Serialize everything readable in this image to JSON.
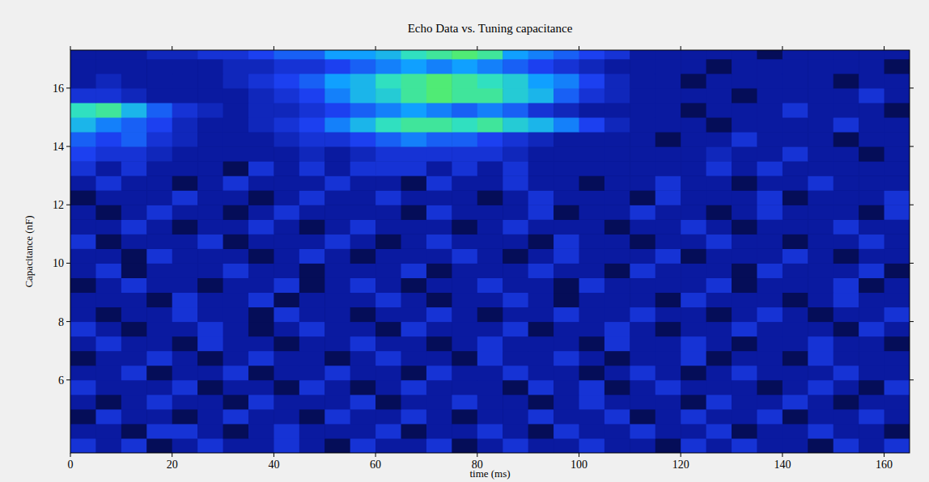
{
  "chart_data": {
    "type": "heatmap",
    "title": "Echo Data vs. Tuning capacitance",
    "x_label": "time (ms)",
    "y_label": "Capacitance (nF)",
    "xlim": [
      0,
      165
    ],
    "ylim": [
      3.5,
      17.3
    ],
    "xticks": [
      0,
      20,
      40,
      60,
      80,
      100,
      120,
      140,
      160
    ],
    "yticks": [
      6,
      8,
      10,
      12,
      14,
      16
    ],
    "zlim": [
      0,
      1
    ],
    "x_bins": [
      0,
      5,
      10,
      15,
      20,
      25,
      30,
      35,
      40,
      45,
      50,
      55,
      60,
      65,
      70,
      75,
      80,
      85,
      90,
      95,
      100,
      105,
      110,
      115,
      120,
      125,
      130,
      135,
      140,
      145,
      150,
      155,
      160,
      165
    ],
    "y_bins": [
      3.5,
      4.0,
      4.5,
      5.0,
      5.5,
      6.0,
      6.5,
      7.0,
      7.5,
      8.0,
      8.5,
      9.0,
      9.5,
      10.0,
      10.5,
      11.0,
      11.5,
      12.0,
      12.5,
      13.0,
      13.5,
      14.0,
      14.5,
      15.0,
      15.5,
      16.0,
      16.5,
      17.0,
      17.5
    ],
    "z": [
      [
        0.3,
        0.2,
        0.3,
        0.1,
        0.2,
        0.3,
        0.2,
        0.2,
        0.3,
        0.2,
        0.1,
        0.3,
        0.2,
        0.2,
        0.3,
        0.1,
        0.2,
        0.3,
        0.2,
        0.2,
        0.3,
        0.2,
        0.2,
        0.1,
        0.3,
        0.2,
        0.3,
        0.2,
        0.2,
        0.1,
        0.3,
        0.2,
        0.3
      ],
      [
        0.2,
        0.2,
        0.1,
        0.3,
        0.3,
        0.2,
        0.1,
        0.2,
        0.3,
        0.2,
        0.2,
        0.2,
        0.3,
        0.1,
        0.2,
        0.2,
        0.3,
        0.2,
        0.1,
        0.3,
        0.2,
        0.2,
        0.3,
        0.2,
        0.2,
        0.3,
        0.1,
        0.2,
        0.2,
        0.3,
        0.2,
        0.2,
        0.1
      ],
      [
        0.1,
        0.3,
        0.2,
        0.2,
        0.1,
        0.2,
        0.3,
        0.2,
        0.2,
        0.1,
        0.3,
        0.2,
        0.2,
        0.3,
        0.2,
        0.1,
        0.2,
        0.2,
        0.3,
        0.2,
        0.2,
        0.3,
        0.1,
        0.2,
        0.3,
        0.2,
        0.2,
        0.3,
        0.1,
        0.2,
        0.2,
        0.3,
        0.2
      ],
      [
        0.2,
        0.1,
        0.2,
        0.3,
        0.2,
        0.2,
        0.1,
        0.3,
        0.2,
        0.2,
        0.2,
        0.3,
        0.1,
        0.2,
        0.2,
        0.3,
        0.2,
        0.2,
        0.1,
        0.2,
        0.3,
        0.2,
        0.2,
        0.2,
        0.1,
        0.3,
        0.2,
        0.2,
        0.3,
        0.2,
        0.1,
        0.2,
        0.2
      ],
      [
        0.3,
        0.2,
        0.2,
        0.2,
        0.3,
        0.1,
        0.2,
        0.2,
        0.1,
        0.3,
        0.2,
        0.1,
        0.2,
        0.3,
        0.2,
        0.2,
        0.2,
        0.1,
        0.3,
        0.2,
        0.3,
        0.1,
        0.2,
        0.3,
        0.2,
        0.2,
        0.2,
        0.1,
        0.2,
        0.3,
        0.2,
        0.1,
        0.3
      ],
      [
        0.2,
        0.2,
        0.3,
        0.1,
        0.2,
        0.2,
        0.3,
        0.1,
        0.2,
        0.2,
        0.3,
        0.2,
        0.2,
        0.1,
        0.3,
        0.2,
        0.2,
        0.3,
        0.2,
        0.2,
        0.1,
        0.2,
        0.3,
        0.2,
        0.1,
        0.2,
        0.3,
        0.2,
        0.2,
        0.2,
        0.3,
        0.2,
        0.2
      ],
      [
        0.1,
        0.2,
        0.2,
        0.3,
        0.2,
        0.1,
        0.2,
        0.3,
        0.2,
        0.2,
        0.1,
        0.2,
        0.3,
        0.2,
        0.2,
        0.1,
        0.3,
        0.2,
        0.2,
        0.3,
        0.2,
        0.1,
        0.2,
        0.2,
        0.3,
        0.1,
        0.2,
        0.2,
        0.1,
        0.3,
        0.2,
        0.2,
        0.2
      ],
      [
        0.2,
        0.3,
        0.2,
        0.2,
        0.1,
        0.3,
        0.2,
        0.2,
        0.1,
        0.2,
        0.2,
        0.3,
        0.2,
        0.2,
        0.1,
        0.2,
        0.3,
        0.2,
        0.2,
        0.2,
        0.1,
        0.3,
        0.2,
        0.2,
        0.3,
        0.2,
        0.1,
        0.2,
        0.2,
        0.3,
        0.2,
        0.2,
        0.1
      ],
      [
        0.3,
        0.2,
        0.1,
        0.2,
        0.2,
        0.3,
        0.2,
        0.1,
        0.2,
        0.3,
        0.2,
        0.2,
        0.1,
        0.3,
        0.2,
        0.2,
        0.2,
        0.3,
        0.1,
        0.2,
        0.2,
        0.3,
        0.2,
        0.1,
        0.2,
        0.2,
        0.3,
        0.2,
        0.2,
        0.2,
        0.1,
        0.3,
        0.2
      ],
      [
        0.2,
        0.1,
        0.2,
        0.2,
        0.3,
        0.2,
        0.2,
        0.1,
        0.3,
        0.2,
        0.2,
        0.1,
        0.2,
        0.2,
        0.3,
        0.2,
        0.1,
        0.2,
        0.2,
        0.3,
        0.2,
        0.2,
        0.3,
        0.2,
        0.2,
        0.1,
        0.2,
        0.3,
        0.2,
        0.1,
        0.2,
        0.2,
        0.3
      ],
      [
        0.2,
        0.2,
        0.2,
        0.1,
        0.3,
        0.2,
        0.2,
        0.3,
        0.1,
        0.2,
        0.2,
        0.2,
        0.3,
        0.2,
        0.1,
        0.2,
        0.2,
        0.3,
        0.2,
        0.1,
        0.2,
        0.2,
        0.2,
        0.1,
        0.3,
        0.2,
        0.2,
        0.2,
        0.1,
        0.2,
        0.3,
        0.2,
        0.2
      ],
      [
        0.1,
        0.2,
        0.3,
        0.2,
        0.2,
        0.1,
        0.2,
        0.2,
        0.3,
        0.1,
        0.2,
        0.3,
        0.2,
        0.1,
        0.2,
        0.2,
        0.3,
        0.2,
        0.2,
        0.1,
        0.3,
        0.2,
        0.2,
        0.2,
        0.2,
        0.3,
        0.1,
        0.2,
        0.2,
        0.2,
        0.3,
        0.1,
        0.2
      ],
      [
        0.2,
        0.3,
        0.1,
        0.2,
        0.2,
        0.2,
        0.3,
        0.2,
        0.2,
        0.1,
        0.2,
        0.2,
        0.2,
        0.3,
        0.1,
        0.2,
        0.2,
        0.2,
        0.3,
        0.2,
        0.2,
        0.1,
        0.3,
        0.2,
        0.2,
        0.2,
        0.1,
        0.3,
        0.2,
        0.2,
        0.2,
        0.3,
        0.1
      ],
      [
        0.2,
        0.2,
        0.1,
        0.3,
        0.2,
        0.2,
        0.2,
        0.1,
        0.2,
        0.3,
        0.2,
        0.1,
        0.2,
        0.2,
        0.2,
        0.3,
        0.2,
        0.1,
        0.2,
        0.3,
        0.2,
        0.2,
        0.2,
        0.3,
        0.1,
        0.2,
        0.2,
        0.2,
        0.3,
        0.2,
        0.1,
        0.2,
        0.2
      ],
      [
        0.3,
        0.1,
        0.2,
        0.2,
        0.2,
        0.3,
        0.1,
        0.2,
        0.2,
        0.2,
        0.3,
        0.2,
        0.1,
        0.2,
        0.3,
        0.2,
        0.2,
        0.2,
        0.1,
        0.3,
        0.2,
        0.2,
        0.1,
        0.2,
        0.2,
        0.3,
        0.2,
        0.2,
        0.1,
        0.2,
        0.2,
        0.3,
        0.2
      ],
      [
        0.2,
        0.2,
        0.3,
        0.2,
        0.1,
        0.2,
        0.2,
        0.3,
        0.2,
        0.1,
        0.2,
        0.3,
        0.2,
        0.2,
        0.2,
        0.1,
        0.2,
        0.3,
        0.2,
        0.2,
        0.2,
        0.1,
        0.2,
        0.2,
        0.3,
        0.2,
        0.1,
        0.2,
        0.2,
        0.2,
        0.3,
        0.2,
        0.2
      ],
      [
        0.2,
        0.1,
        0.2,
        0.3,
        0.2,
        0.2,
        0.1,
        0.2,
        0.3,
        0.2,
        0.2,
        0.2,
        0.2,
        0.1,
        0.3,
        0.2,
        0.2,
        0.2,
        0.3,
        0.1,
        0.2,
        0.2,
        0.3,
        0.2,
        0.2,
        0.1,
        0.2,
        0.3,
        0.2,
        0.2,
        0.2,
        0.1,
        0.3
      ],
      [
        0.1,
        0.2,
        0.2,
        0.2,
        0.3,
        0.2,
        0.2,
        0.1,
        0.2,
        0.3,
        0.2,
        0.2,
        0.3,
        0.2,
        0.2,
        0.2,
        0.1,
        0.2,
        0.3,
        0.2,
        0.2,
        0.2,
        0.1,
        0.3,
        0.2,
        0.2,
        0.2,
        0.3,
        0.1,
        0.2,
        0.2,
        0.2,
        0.3
      ],
      [
        0.2,
        0.3,
        0.2,
        0.2,
        0.1,
        0.2,
        0.3,
        0.2,
        0.2,
        0.2,
        0.3,
        0.2,
        0.2,
        0.1,
        0.3,
        0.2,
        0.2,
        0.3,
        0.2,
        0.2,
        0.1,
        0.2,
        0.2,
        0.3,
        0.2,
        0.2,
        0.1,
        0.2,
        0.2,
        0.3,
        0.2,
        0.2,
        0.2
      ],
      [
        0.3,
        0.2,
        0.3,
        0.2,
        0.2,
        0.2,
        0.1,
        0.3,
        0.2,
        0.3,
        0.2,
        0.3,
        0.3,
        0.3,
        0.2,
        0.3,
        0.2,
        0.3,
        0.2,
        0.2,
        0.2,
        0.2,
        0.2,
        0.2,
        0.2,
        0.3,
        0.2,
        0.3,
        0.2,
        0.2,
        0.2,
        0.2,
        0.2
      ],
      [
        0.35,
        0.3,
        0.3,
        0.25,
        0.2,
        0.2,
        0.2,
        0.2,
        0.2,
        0.25,
        0.2,
        0.25,
        0.3,
        0.3,
        0.3,
        0.3,
        0.3,
        0.25,
        0.2,
        0.2,
        0.2,
        0.2,
        0.2,
        0.2,
        0.2,
        0.25,
        0.2,
        0.2,
        0.3,
        0.2,
        0.2,
        0.1,
        0.2
      ],
      [
        0.4,
        0.35,
        0.4,
        0.3,
        0.25,
        0.2,
        0.2,
        0.2,
        0.25,
        0.3,
        0.3,
        0.35,
        0.4,
        0.45,
        0.4,
        0.4,
        0.35,
        0.3,
        0.25,
        0.2,
        0.2,
        0.2,
        0.2,
        0.1,
        0.2,
        0.2,
        0.3,
        0.2,
        0.2,
        0.2,
        0.1,
        0.2,
        0.2
      ],
      [
        0.55,
        0.45,
        0.4,
        0.35,
        0.25,
        0.2,
        0.2,
        0.25,
        0.3,
        0.35,
        0.45,
        0.55,
        0.65,
        0.7,
        0.7,
        0.65,
        0.7,
        0.6,
        0.55,
        0.45,
        0.35,
        0.25,
        0.2,
        0.2,
        0.2,
        0.1,
        0.2,
        0.2,
        0.2,
        0.2,
        0.3,
        0.2,
        0.2
      ],
      [
        0.65,
        0.7,
        0.55,
        0.4,
        0.3,
        0.25,
        0.2,
        0.25,
        0.25,
        0.3,
        0.35,
        0.4,
        0.45,
        0.5,
        0.45,
        0.4,
        0.45,
        0.4,
        0.3,
        0.25,
        0.2,
        0.2,
        0.2,
        0.2,
        0.1,
        0.2,
        0.2,
        0.2,
        0.3,
        0.2,
        0.2,
        0.2,
        0.1
      ],
      [
        0.3,
        0.3,
        0.25,
        0.2,
        0.2,
        0.2,
        0.2,
        0.25,
        0.3,
        0.35,
        0.45,
        0.55,
        0.6,
        0.7,
        0.75,
        0.7,
        0.7,
        0.6,
        0.55,
        0.4,
        0.3,
        0.25,
        0.2,
        0.2,
        0.2,
        0.2,
        0.1,
        0.2,
        0.2,
        0.2,
        0.2,
        0.3,
        0.2
      ],
      [
        0.2,
        0.25,
        0.2,
        0.2,
        0.2,
        0.2,
        0.25,
        0.3,
        0.35,
        0.4,
        0.5,
        0.55,
        0.65,
        0.7,
        0.75,
        0.7,
        0.65,
        0.6,
        0.5,
        0.45,
        0.35,
        0.25,
        0.2,
        0.2,
        0.1,
        0.2,
        0.2,
        0.2,
        0.2,
        0.2,
        0.1,
        0.2,
        0.2
      ],
      [
        0.2,
        0.2,
        0.2,
        0.2,
        0.2,
        0.2,
        0.25,
        0.25,
        0.3,
        0.3,
        0.35,
        0.4,
        0.45,
        0.5,
        0.45,
        0.5,
        0.45,
        0.4,
        0.35,
        0.3,
        0.25,
        0.2,
        0.2,
        0.2,
        0.2,
        0.1,
        0.2,
        0.2,
        0.2,
        0.2,
        0.2,
        0.2,
        0.1
      ],
      [
        0.2,
        0.2,
        0.2,
        0.25,
        0.25,
        0.3,
        0.3,
        0.35,
        0.4,
        0.4,
        0.5,
        0.5,
        0.55,
        0.65,
        0.7,
        0.75,
        0.7,
        0.5,
        0.45,
        0.4,
        0.35,
        0.3,
        0.2,
        0.2,
        0.2,
        0.2,
        0.2,
        0.1,
        0.2,
        0.2,
        0.2,
        0.2,
        0.2
      ]
    ]
  }
}
